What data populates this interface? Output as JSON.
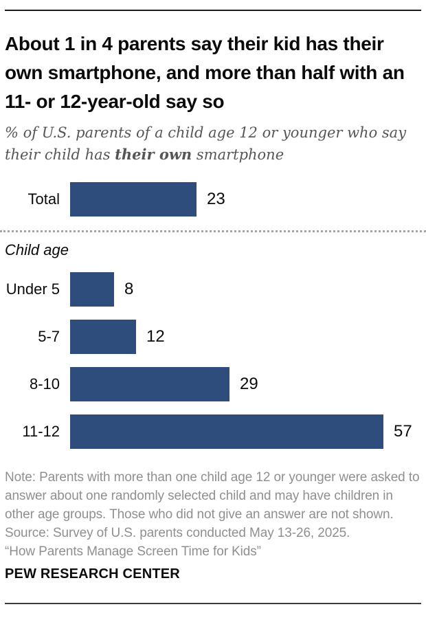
{
  "header": {
    "title": "About 1 in 4 parents say their kid has their own smartphone, and more than half with an 11- or 12-year-old say so",
    "subtitle_prefix": "% of U.S. parents of a child age 12 or younger who say their child has ",
    "subtitle_bold": "their own",
    "subtitle_suffix": " smartphone"
  },
  "chart_data": {
    "type": "bar",
    "orientation": "horizontal",
    "unit": "% of parents",
    "title": "",
    "xlabel": "",
    "ylabel": "",
    "xlim": [
      0,
      60
    ],
    "grid": false,
    "legend": false,
    "bar_color": "#2F4D7C",
    "total": {
      "label": "Total",
      "value": 23
    },
    "group_label": "Child age",
    "categories": [
      "Under 5",
      "5-7",
      "8-10",
      "11-12"
    ],
    "values": [
      8,
      12,
      29,
      57
    ]
  },
  "footer": {
    "note": "Note: Parents with more than one child age 12 or younger were asked to answer about one randomly selected child and may have children in other age groups. Those who did not give an answer are not shown.",
    "source": "Source: Survey of U.S. parents conducted May 13-26, 2025.",
    "report": "“How Parents Manage Screen Time for Kids”",
    "brand": "PEW RESEARCH CENTER"
  }
}
